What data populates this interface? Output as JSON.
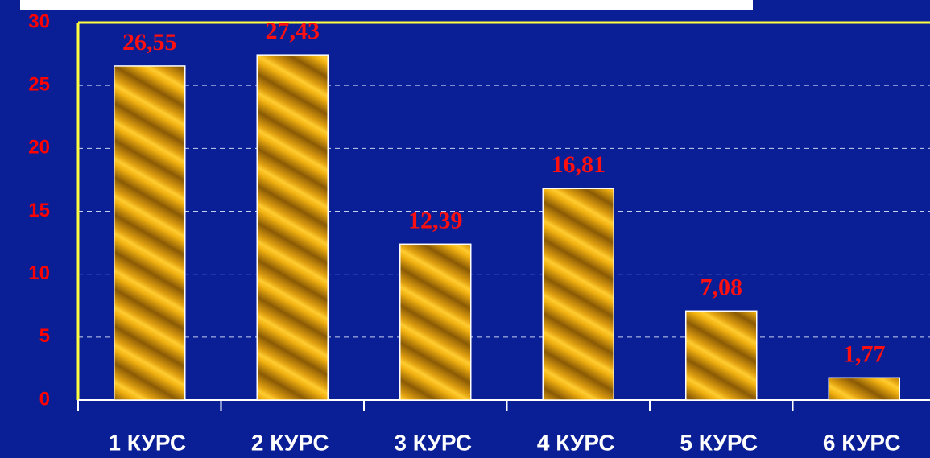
{
  "chart_data": {
    "type": "bar",
    "categories": [
      "1 КУРС",
      "2 КУРС",
      "3 КУРС",
      "4 КУРС",
      "5 КУРС",
      "6 КУРС"
    ],
    "values": [
      26.55,
      27.43,
      12.39,
      16.81,
      7.08,
      1.77
    ],
    "value_labels": [
      "26,55",
      "27,43",
      "12,39",
      "16,81",
      "7,08",
      "1,77"
    ],
    "color": "#e0a010",
    "ylim": [
      0,
      30
    ],
    "yticks": [
      0,
      5,
      10,
      15,
      20,
      25,
      30
    ],
    "grid": true
  }
}
